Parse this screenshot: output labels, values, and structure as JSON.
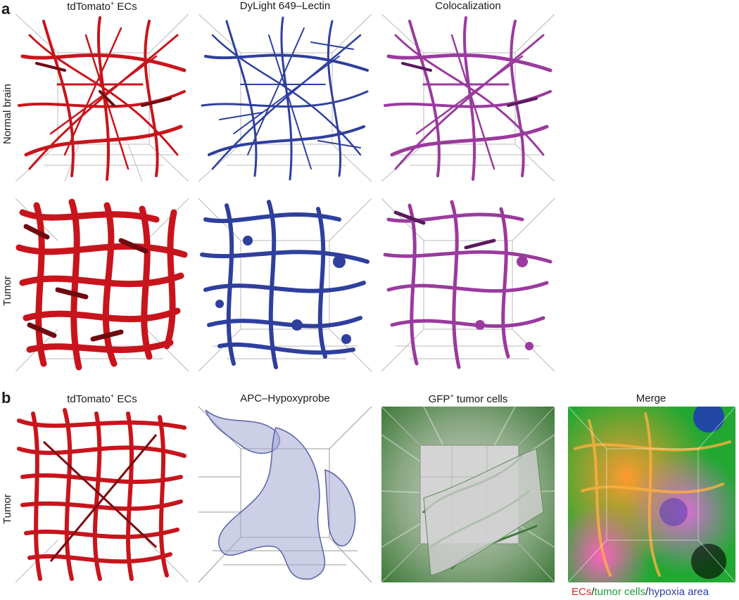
{
  "panel_a": {
    "letter": "a",
    "columns": [
      {
        "text": "tdTomato",
        "sup": "+",
        "rest": " ECs"
      },
      {
        "text": "DyLight 649–Lectin",
        "sup": "",
        "rest": ""
      },
      {
        "text": "Colocalization",
        "sup": "",
        "rest": ""
      }
    ],
    "rows": [
      "Normal brain",
      "Tumor"
    ]
  },
  "panel_b": {
    "letter": "b",
    "columns": [
      {
        "text": "tdTomato",
        "sup": "+",
        "rest": " ECs"
      },
      {
        "text": "APC–Hypoxyprobe",
        "sup": "",
        "rest": ""
      },
      {
        "text": "GFP",
        "sup": "+",
        "rest": " tumor cells"
      },
      {
        "text": "Merge",
        "sup": "",
        "rest": ""
      }
    ],
    "rows": [
      "Tumor"
    ]
  },
  "legend": {
    "ecs": "ECs",
    "sep1": "/",
    "tumor": "tumor cells",
    "sep2": "/",
    "hypoxia": "hypoxia area",
    "colors": {
      "ecs": "#e8202a",
      "tumor": "#1f9a3a",
      "hypoxia": "#2a3ea8"
    }
  },
  "colors": {
    "red_vessel": "#c8141c",
    "blue_vessel": "#2e3f9e",
    "magenta_vessel": "#9a3a9e"
  }
}
